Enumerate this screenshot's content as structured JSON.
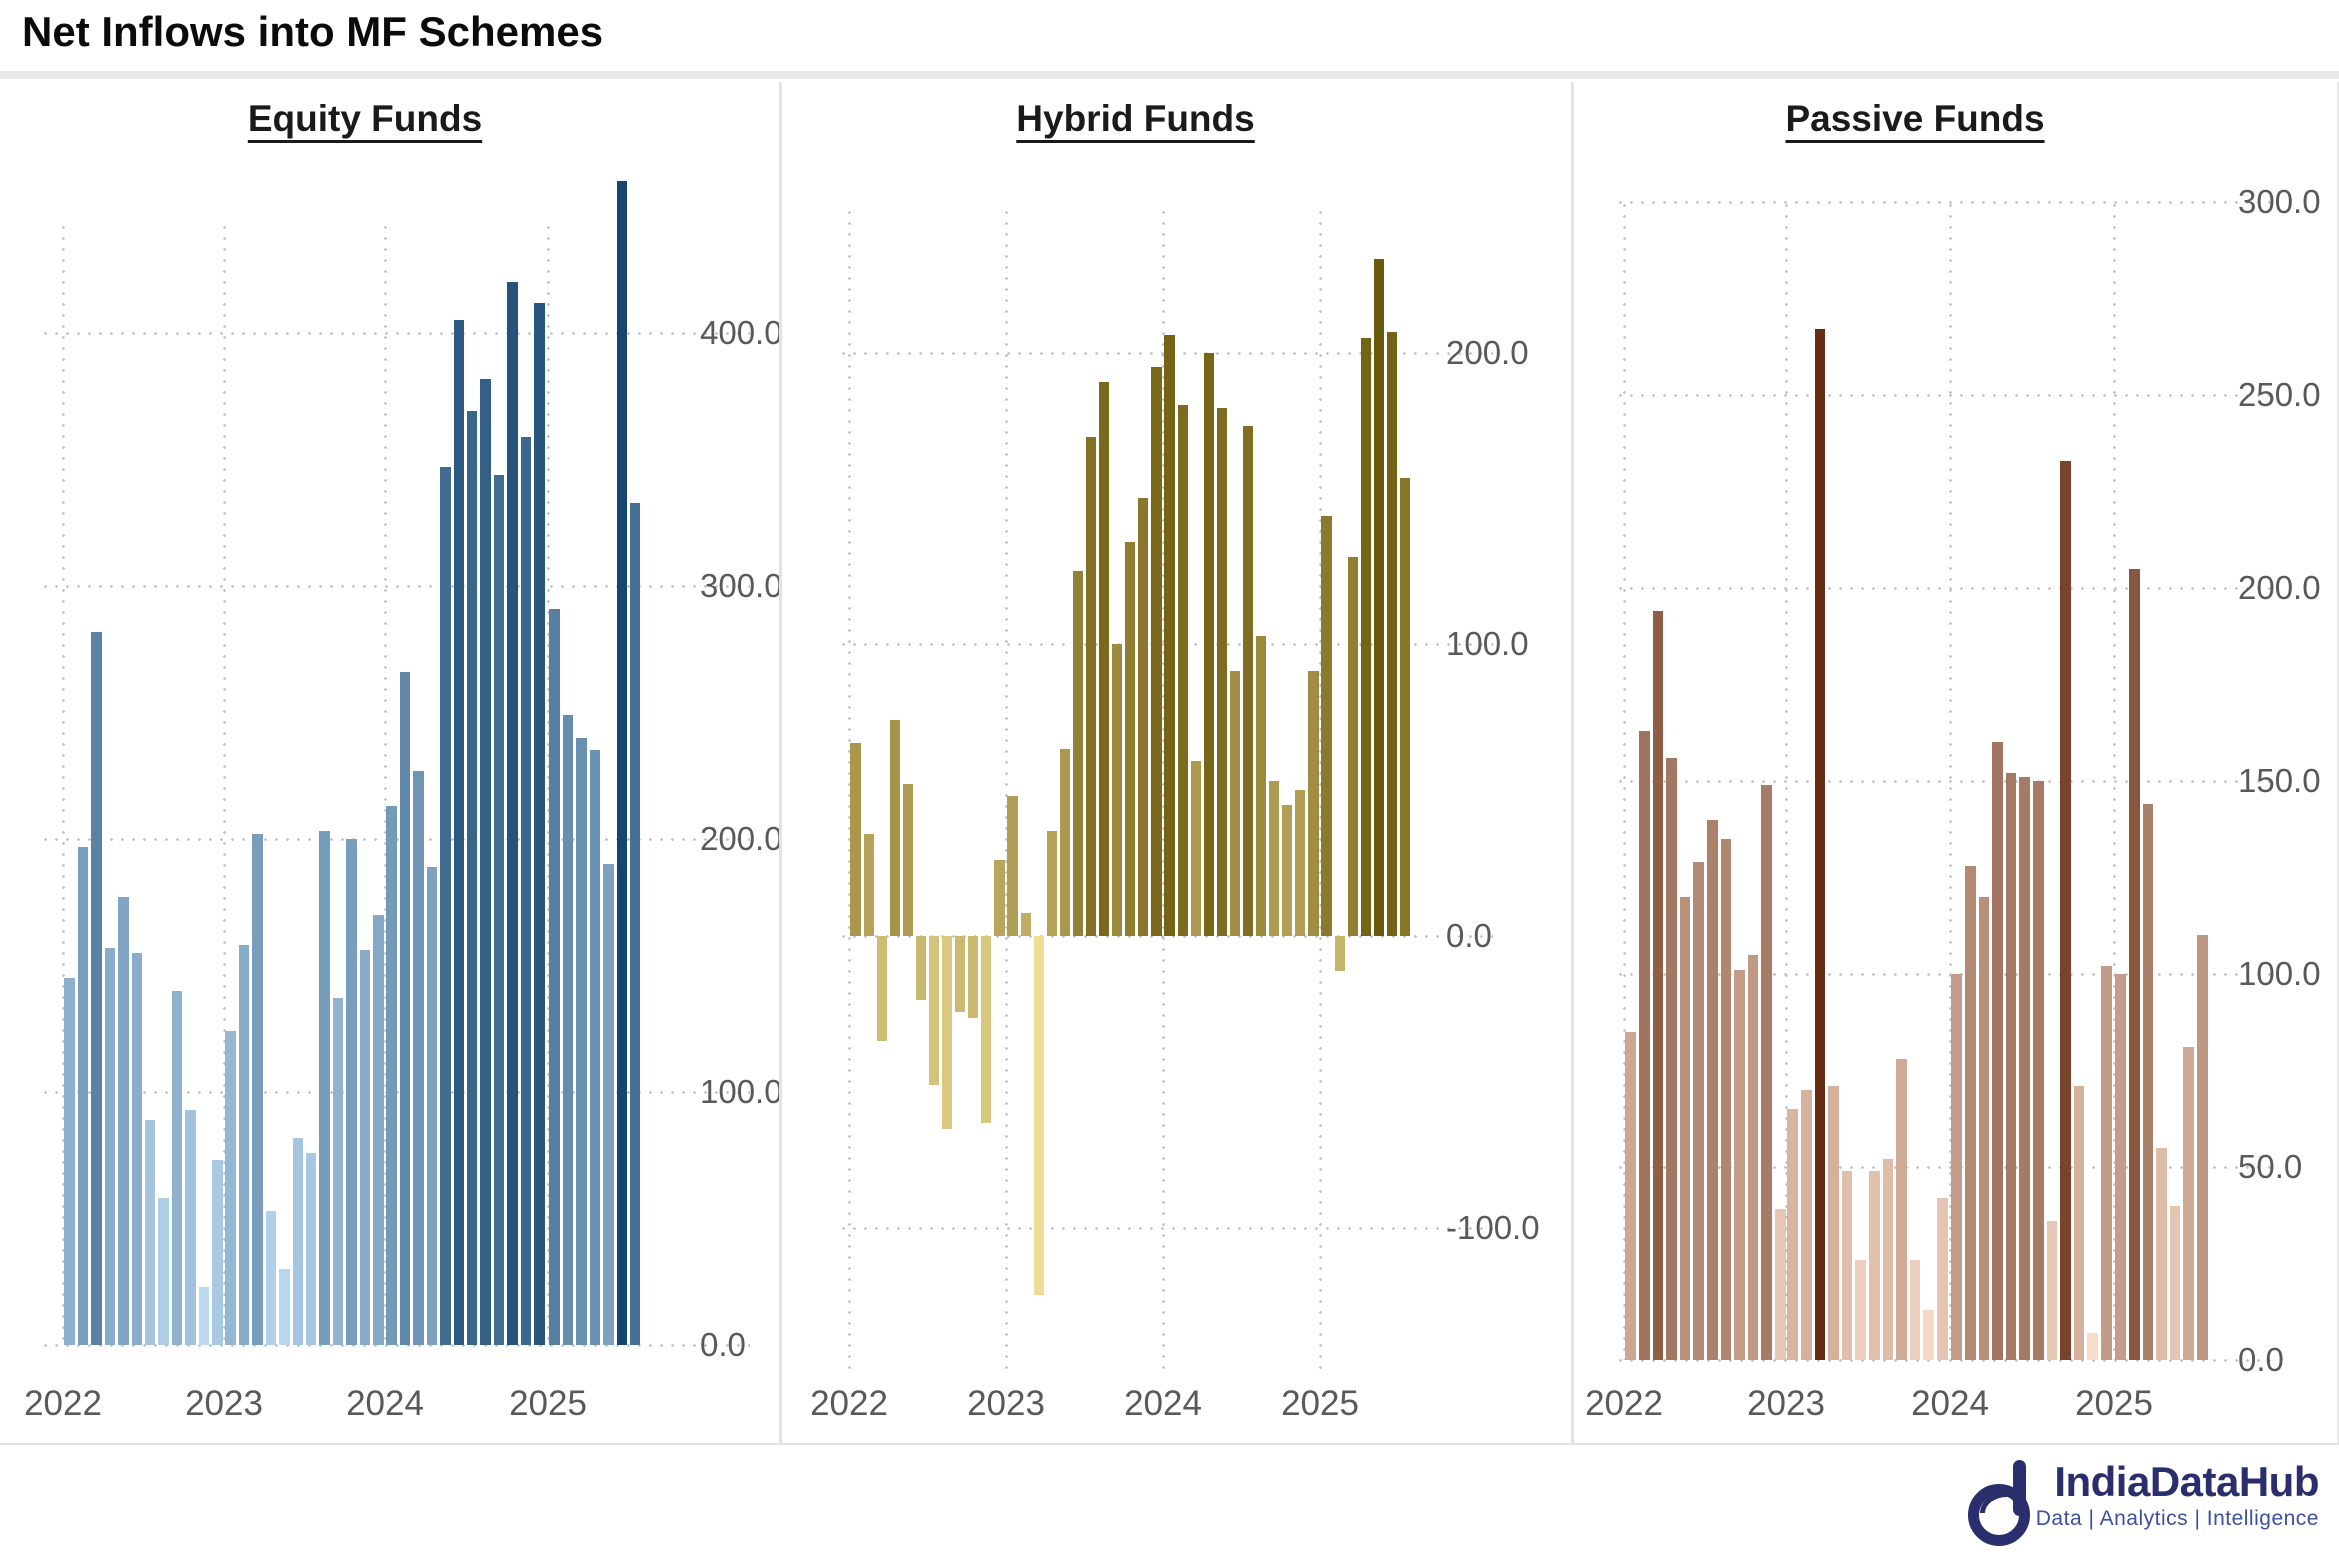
{
  "header": {
    "title": "Net Inflows into MF Schemes"
  },
  "footer": {
    "brand": "IndiaDataHub",
    "tagline": "Data | Analytics | Intelligence",
    "brand_color": "#2b2e6d",
    "tagline_color": "#3d4f9e"
  },
  "axis_style": {
    "label_color": "#595959",
    "grid_color": "#c3c3c3"
  },
  "x_year_labels": [
    "2022",
    "2023",
    "2024",
    "2025"
  ],
  "months": [
    "Jan 2022",
    "Feb 2022",
    "Mar 2022",
    "Apr 2022",
    "May 2022",
    "Jun 2022",
    "Jul 2022",
    "Aug 2022",
    "Sep 2022",
    "Oct 2022",
    "Nov 2022",
    "Dec 2022",
    "Jan 2023",
    "Feb 2023",
    "Mar 2023",
    "Apr 2023",
    "May 2023",
    "Jun 2023",
    "Jul 2023",
    "Aug 2023",
    "Sep 2023",
    "Oct 2023",
    "Nov 2023",
    "Dec 2023",
    "Jan 2024",
    "Feb 2024",
    "Mar 2024",
    "Apr 2024",
    "May 2024",
    "Jun 2024",
    "Jul 2024",
    "Aug 2024",
    "Sep 2024",
    "Oct 2024",
    "Nov 2024",
    "Dec 2024",
    "Jan 2025",
    "Feb 2025",
    "Mar 2025",
    "Apr 2025",
    "May 2025",
    "Jun 2025",
    "Jul 2025"
  ],
  "chart_data": [
    {
      "type": "bar",
      "title": "Equity Funds",
      "x": "months (Jan 2022 - Jul 2025)",
      "values": [
        145,
        197,
        282,
        157,
        177,
        155,
        89,
        58,
        140,
        93,
        23,
        73,
        124,
        158,
        202,
        53,
        30,
        82,
        76,
        203,
        137,
        200,
        156,
        170,
        213,
        266,
        227,
        189,
        347,
        405,
        369,
        382,
        344,
        420,
        359,
        412,
        291,
        249,
        240,
        235,
        190,
        460,
        333
      ],
      "ylim": [
        0,
        470
      ],
      "yticks": [
        {
          "v": 400,
          "label": "400.0"
        },
        {
          "v": 300,
          "label": "300.0"
        },
        {
          "v": 200,
          "label": "200.0"
        },
        {
          "v": 100,
          "label": "100.0"
        },
        {
          "v": 0,
          "label": "0.0"
        }
      ],
      "color_low": "#bcd9f2",
      "color_high": "#16466e",
      "grid": "dotted",
      "legend": "none"
    },
    {
      "type": "bar",
      "title": "Hybrid Funds",
      "x": "months (Jan 2022 - Jul 2025)",
      "values": [
        66,
        35,
        -36,
        74,
        52,
        -22,
        -51,
        -66,
        -26,
        -28,
        -64,
        26,
        48,
        8,
        -123,
        36,
        64,
        125,
        171,
        190,
        100,
        135,
        150,
        195,
        206,
        182,
        60,
        200,
        181,
        91,
        175,
        103,
        53,
        45,
        50,
        91,
        144,
        -12,
        130,
        205,
        232,
        207,
        157
      ],
      "ylim": [
        -160,
        250
      ],
      "yticks": [
        {
          "v": 200,
          "label": "200.0"
        },
        {
          "v": 100,
          "label": "100.0"
        },
        {
          "v": 0,
          "label": "0.0"
        },
        {
          "v": -100,
          "label": "-100.0"
        }
      ],
      "color_low": "#eedd96",
      "color_high": "#6b5a0c",
      "grid": "dotted",
      "legend": "none"
    },
    {
      "type": "bar",
      "title": "Passive Funds",
      "x": "months (Jan 2022 - Jul 2025)",
      "values": [
        85,
        163,
        194,
        156,
        120,
        129,
        140,
        135,
        101,
        105,
        149,
        39,
        65,
        70,
        267,
        71,
        49,
        26,
        49,
        52,
        78,
        26,
        13,
        42,
        100,
        128,
        120,
        160,
        152,
        151,
        150,
        36,
        233,
        71,
        7,
        102,
        100,
        205,
        144,
        55,
        40,
        81,
        110
      ],
      "ylim": [
        0,
        320
      ],
      "yticks": [
        {
          "v": 300,
          "label": "300.0"
        },
        {
          "v": 250,
          "label": "250.0"
        },
        {
          "v": 200,
          "label": "200.0"
        },
        {
          "v": 150,
          "label": "150.0"
        },
        {
          "v": 100,
          "label": "100.0"
        },
        {
          "v": 50,
          "label": "50.0"
        },
        {
          "v": 0,
          "label": "0.0"
        }
      ],
      "color_low": "#f8dcca",
      "color_high": "#642d14",
      "grid": "dotted",
      "legend": "none"
    }
  ]
}
